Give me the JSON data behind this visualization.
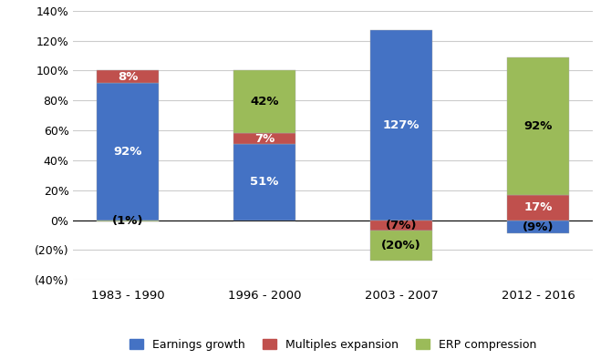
{
  "categories": [
    "1983 - 1990",
    "1996 - 2000",
    "2003 - 2007",
    "2012 - 2016"
  ],
  "earnings_growth": [
    92,
    51,
    127,
    -9
  ],
  "multiples_expansion": [
    8,
    7,
    -7,
    17
  ],
  "erp_compression": [
    -1,
    42,
    -20,
    92
  ],
  "earnings_labels": [
    "92%",
    "51%",
    "127%",
    "(9%)"
  ],
  "multiples_labels": [
    "8%",
    "7%",
    "(7%)",
    "17%"
  ],
  "erp_labels": [
    "(1%)",
    "42%",
    "(20%)",
    "92%"
  ],
  "earnings_label_colors": [
    "white",
    "white",
    "white",
    "black"
  ],
  "multiples_label_colors": [
    "white",
    "white",
    "black",
    "white"
  ],
  "erp_label_colors": [
    "black",
    "black",
    "black",
    "black"
  ],
  "colors": {
    "earnings_growth": "#4472C4",
    "multiples_expansion": "#C0504D",
    "erp_compression": "#9BBB59"
  },
  "ylim": [
    -40,
    140
  ],
  "yticks": [
    -40,
    -20,
    0,
    20,
    40,
    60,
    80,
    100,
    120,
    140
  ],
  "ytick_labels": [
    "(40%)",
    "(20%)",
    "0%",
    "20%",
    "40%",
    "60%",
    "80%",
    "100%",
    "120%",
    "140%"
  ],
  "legend_labels": [
    "Earnings growth",
    "Multiples expansion",
    "ERP compression"
  ],
  "bar_width": 0.45,
  "background_color": "#FFFFFF"
}
